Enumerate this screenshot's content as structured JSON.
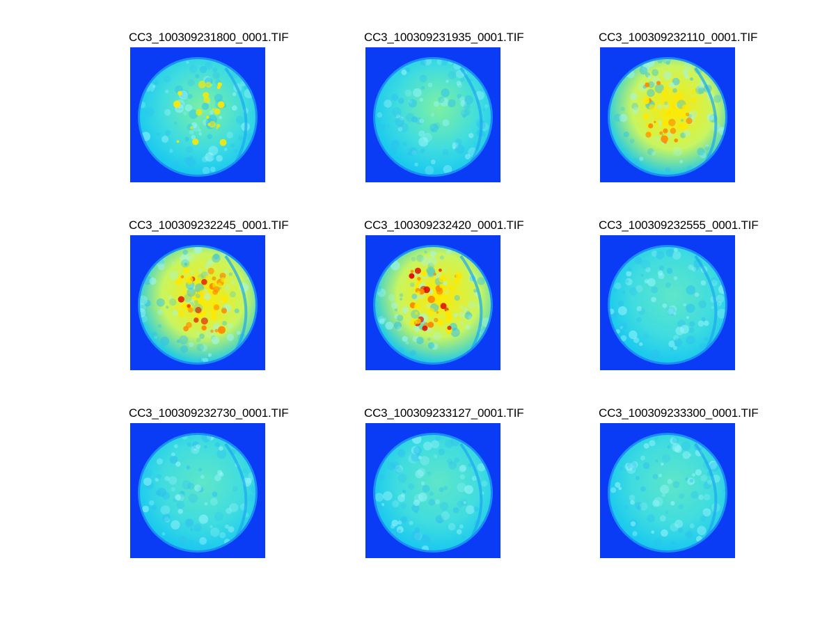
{
  "figure": {
    "panels": [
      {
        "title": "CC3_100309231800_0001.TIF",
        "intensity": 0.35,
        "variant": 0
      },
      {
        "title": "CC3_100309231935_0001.TIF",
        "intensity": 0.3,
        "variant": 1
      },
      {
        "title": "CC3_100309232110_0001.TIF",
        "intensity": 0.7,
        "variant": 2
      },
      {
        "title": "CC3_100309232245_0001.TIF",
        "intensity": 0.95,
        "variant": 3
      },
      {
        "title": "CC3_100309232420_0001.TIF",
        "intensity": 0.9,
        "variant": 4
      },
      {
        "title": "CC3_100309232555_0001.TIF",
        "intensity": 0.12,
        "variant": 5
      },
      {
        "title": "CC3_100309232730_0001.TIF",
        "intensity": 0.18,
        "variant": 6
      },
      {
        "title": "CC3_100309233127_0001.TIF",
        "intensity": 0.2,
        "variant": 7
      },
      {
        "title": "CC3_100309233300_0001.TIF",
        "intensity": 0.22,
        "variant": 8
      }
    ]
  },
  "colors": {
    "background": "#0a3cf5",
    "low": "#18c8f0",
    "mid": "#7ef0a0",
    "high": "#ffe800",
    "peak": "#e01000"
  }
}
